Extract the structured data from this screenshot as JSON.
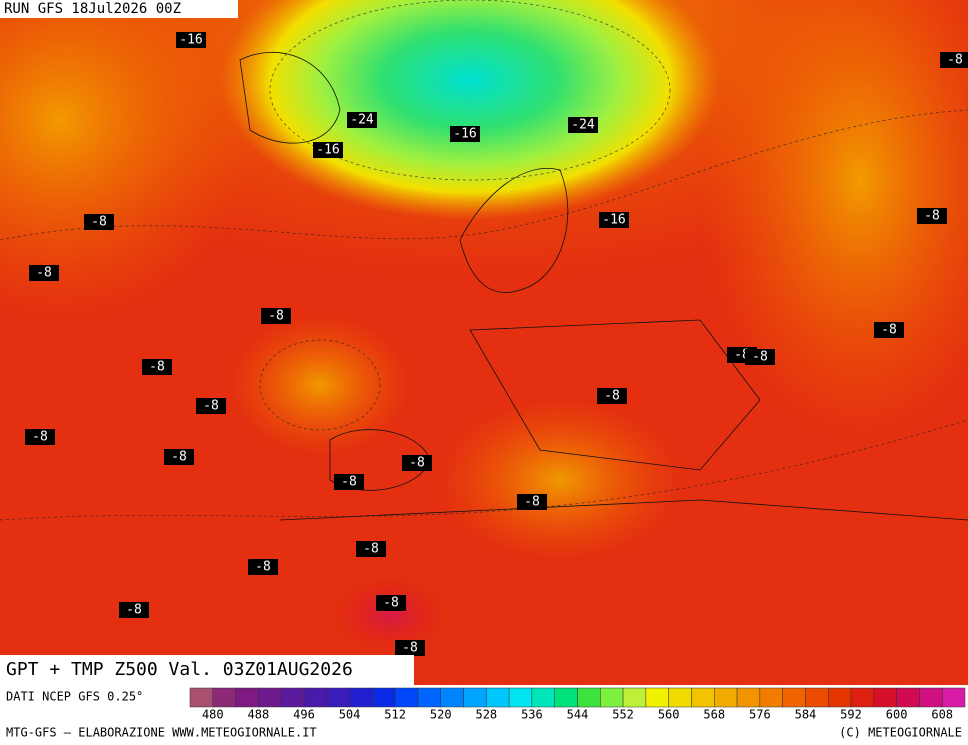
{
  "header": {
    "run": "RUN GFS 18Jul2026 00Z"
  },
  "map": {
    "contour_labels": [
      -16,
      -8,
      -24,
      -16,
      -24,
      -16,
      -8,
      -16,
      -8,
      -8,
      -8,
      -8,
      -8,
      -8,
      -8,
      -8,
      -8,
      -8,
      -8,
      -8,
      -8,
      -8,
      -8,
      -8,
      -8,
      -8,
      -8
    ]
  },
  "title": "GPT + TMP Z500 Val. 03Z01AUG2026",
  "legend": {
    "source": "DATI NCEP GFS 0.25°",
    "labels": [
      480,
      488,
      496,
      504,
      512,
      520,
      528,
      536,
      544,
      552,
      560,
      568,
      576,
      584,
      592,
      600,
      608
    ],
    "colors": [
      "#a8506e",
      "#8c2a78",
      "#7e1a82",
      "#6c1a8e",
      "#5c1a9c",
      "#4a1aaa",
      "#3a1cbc",
      "#2020d0",
      "#0a2ae6",
      "#0046fa",
      "#0064ff",
      "#0084ff",
      "#00a4ff",
      "#00c8ff",
      "#00e4f0",
      "#00e6b8",
      "#00e27a",
      "#3ee23e",
      "#7ef03e",
      "#bef03a",
      "#f2f200",
      "#f2dc00",
      "#f2c400",
      "#f2ac00",
      "#f29400",
      "#f27c00",
      "#f06400",
      "#ec4c00",
      "#e63600",
      "#de2010",
      "#d61028",
      "#d20a52",
      "#d0107e",
      "#d81ca8"
    ]
  },
  "footer": {
    "left": "MTG-GFS — ELABORAZIONE WWW.METEOGIORNALE.IT",
    "right": "(C) METEOGIORNALE"
  }
}
